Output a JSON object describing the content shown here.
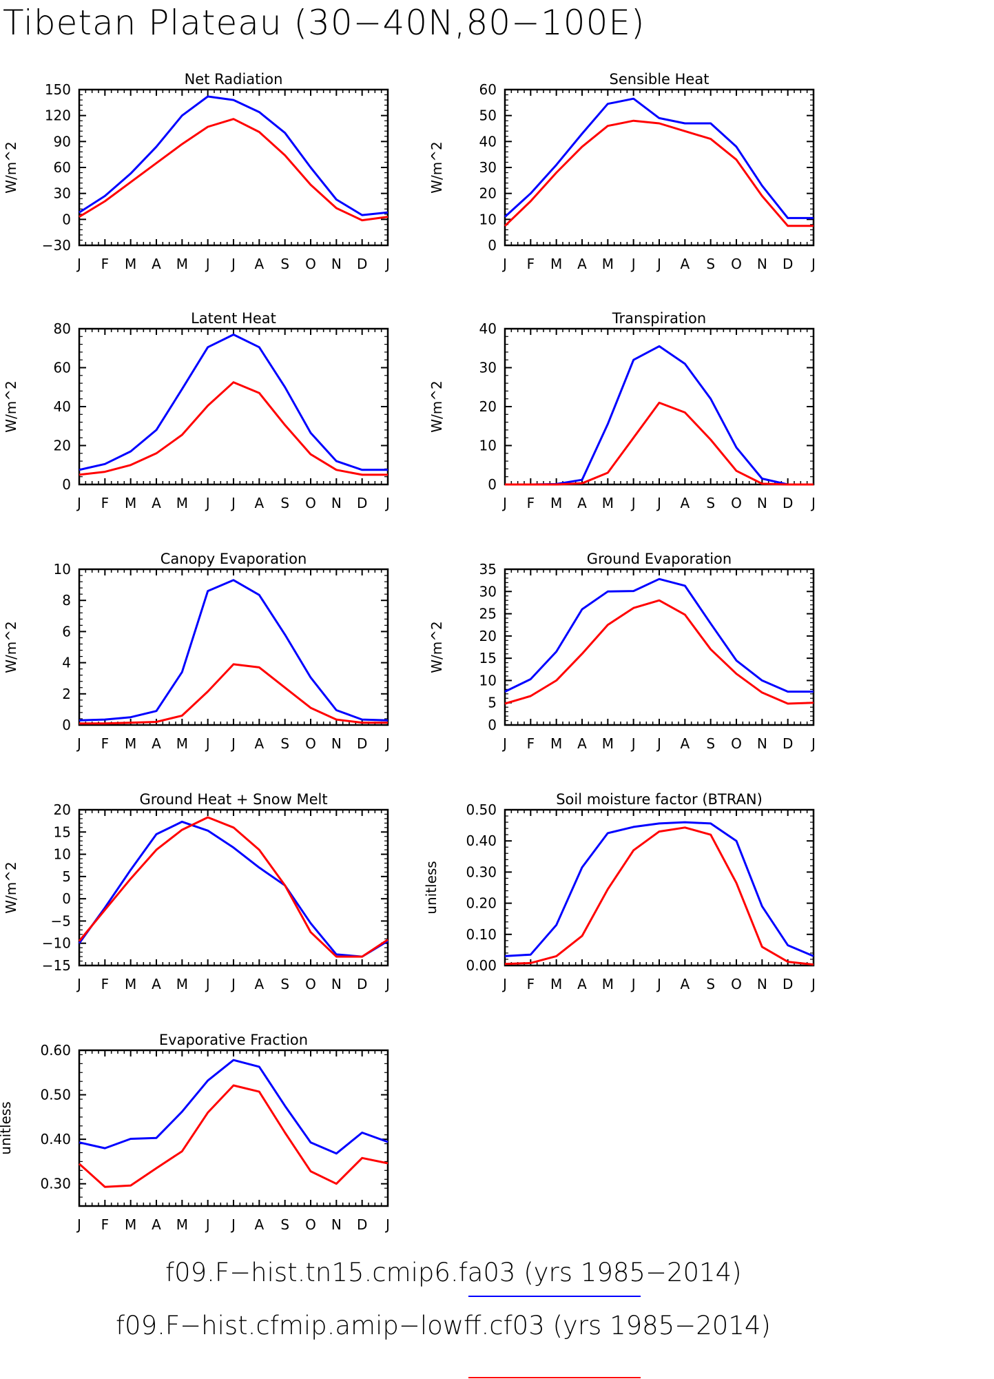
{
  "title": "Tibetan Plateau (30−40N,80−100E)",
  "colors": {
    "series1": "#0000ff",
    "series2": "#ff0000",
    "axis": "#000000"
  },
  "legend": {
    "items": [
      {
        "label": "f09.F−hist.tn15.cmip6.fa03 (yrs 1985−2014)",
        "color": "#0000ff"
      },
      {
        "label": "f09.F−hist.cfmip.amip−lowff.cf03 (yrs 1985−2014)",
        "color": "#ff0000"
      }
    ]
  },
  "chart_data": [
    {
      "type": "line",
      "title": "Net Radiation",
      "ylabel": "W/m^2",
      "categories": [
        "J",
        "F",
        "M",
        "A",
        "M",
        "J",
        "J",
        "A",
        "S",
        "O",
        "N",
        "D",
        "J"
      ],
      "ylim": [
        -30,
        150
      ],
      "yticks": [
        "−30",
        "0",
        "30",
        "60",
        "90",
        "120",
        "150"
      ],
      "ytick_values": [
        -30,
        0,
        30,
        60,
        90,
        120,
        150
      ],
      "series": [
        {
          "values": [
            8,
            27,
            53,
            84,
            120,
            142,
            138,
            124,
            100,
            60,
            23,
            5,
            8
          ]
        },
        {
          "values": [
            3,
            21,
            43,
            65,
            87,
            107,
            116,
            101,
            74,
            40,
            13,
            -1,
            3
          ]
        }
      ]
    },
    {
      "type": "line",
      "title": "Sensible Heat",
      "ylabel": "W/m^2",
      "categories": [
        "J",
        "F",
        "M",
        "A",
        "M",
        "J",
        "J",
        "A",
        "S",
        "O",
        "N",
        "D",
        "J"
      ],
      "ylim": [
        0,
        60
      ],
      "yticks": [
        "0",
        "10",
        "20",
        "30",
        "40",
        "50",
        "60"
      ],
      "ytick_values": [
        0,
        10,
        20,
        30,
        40,
        50,
        60
      ],
      "series": [
        {
          "values": [
            11,
            20,
            31,
            43,
            54.5,
            56.5,
            49,
            47,
            47,
            38,
            23,
            10.5,
            10.5
          ]
        },
        {
          "values": [
            7.5,
            17,
            28,
            38,
            46,
            48,
            47,
            44,
            41,
            33,
            19,
            7.5,
            7.5
          ]
        }
      ]
    },
    {
      "type": "line",
      "title": "Latent Heat",
      "ylabel": "W/m^2",
      "categories": [
        "J",
        "F",
        "M",
        "A",
        "M",
        "J",
        "J",
        "A",
        "S",
        "O",
        "N",
        "D",
        "J"
      ],
      "ylim": [
        0,
        80
      ],
      "yticks": [
        "0",
        "20",
        "40",
        "60",
        "80"
      ],
      "ytick_values": [
        0,
        20,
        40,
        60,
        80
      ],
      "series": [
        {
          "values": [
            7.5,
            10.5,
            17,
            28,
            49,
            70.5,
            77,
            70.5,
            50,
            26.5,
            12,
            7.5,
            7.5
          ]
        },
        {
          "values": [
            5,
            6.5,
            10,
            16,
            25.5,
            40.5,
            52.5,
            47,
            30.5,
            15.5,
            7.5,
            5,
            5
          ]
        }
      ]
    },
    {
      "type": "line",
      "title": "Transpiration",
      "ylabel": "W/m^2",
      "categories": [
        "J",
        "F",
        "M",
        "A",
        "M",
        "J",
        "J",
        "A",
        "S",
        "O",
        "N",
        "D",
        "J"
      ],
      "ylim": [
        0,
        40
      ],
      "yticks": [
        "0",
        "10",
        "20",
        "30",
        "40"
      ],
      "ytick_values": [
        0,
        10,
        20,
        30,
        40
      ],
      "series": [
        {
          "values": [
            0,
            0,
            0.1,
            1.2,
            15.5,
            32,
            35.5,
            31,
            22,
            9.5,
            1.5,
            0,
            0
          ]
        },
        {
          "values": [
            0,
            0,
            0,
            0.3,
            3,
            12,
            21,
            18.5,
            11.5,
            3.5,
            0.2,
            0,
            0
          ]
        }
      ]
    },
    {
      "type": "line",
      "title": "Canopy Evaporation",
      "ylabel": "W/m^2",
      "categories": [
        "J",
        "F",
        "M",
        "A",
        "M",
        "J",
        "J",
        "A",
        "S",
        "O",
        "N",
        "D",
        "J"
      ],
      "ylim": [
        0,
        10
      ],
      "yticks": [
        "0",
        "2",
        "4",
        "6",
        "8",
        "10"
      ],
      "ytick_values": [
        0,
        2,
        4,
        6,
        8,
        10
      ],
      "series": [
        {
          "values": [
            0.3,
            0.35,
            0.5,
            0.9,
            3.4,
            8.6,
            9.3,
            8.35,
            5.8,
            3.05,
            0.95,
            0.35,
            0.3
          ]
        },
        {
          "values": [
            0.1,
            0.1,
            0.15,
            0.2,
            0.6,
            2.15,
            3.9,
            3.7,
            2.4,
            1.1,
            0.35,
            0.15,
            0.15
          ]
        }
      ]
    },
    {
      "type": "line",
      "title": "Ground Evaporation",
      "ylabel": "W/m^2",
      "categories": [
        "J",
        "F",
        "M",
        "A",
        "M",
        "J",
        "J",
        "A",
        "S",
        "O",
        "N",
        "D",
        "J"
      ],
      "ylim": [
        0,
        35
      ],
      "yticks": [
        "0",
        "5",
        "10",
        "15",
        "20",
        "25",
        "30",
        "35"
      ],
      "ytick_values": [
        0,
        5,
        10,
        15,
        20,
        25,
        30,
        35
      ],
      "series": [
        {
          "values": [
            7.5,
            10.3,
            16.5,
            26,
            30,
            30.1,
            32.8,
            31.3,
            22.8,
            14.5,
            10,
            7.5,
            7.5
          ]
        },
        {
          "values": [
            4.8,
            6.5,
            10,
            16,
            22.5,
            26.3,
            28,
            24.8,
            17,
            11.5,
            7.3,
            4.8,
            5
          ]
        }
      ]
    },
    {
      "type": "line",
      "title": "Ground Heat + Snow Melt",
      "ylabel": "W/m^2",
      "categories": [
        "J",
        "F",
        "M",
        "A",
        "M",
        "J",
        "J",
        "A",
        "S",
        "O",
        "N",
        "D",
        "J"
      ],
      "ylim": [
        -15,
        20
      ],
      "yticks": [
        "−15",
        "−10",
        "−5",
        "0",
        "5",
        "10",
        "15",
        "20"
      ],
      "ytick_values": [
        -15,
        -10,
        -5,
        0,
        5,
        10,
        15,
        20
      ],
      "series": [
        {
          "values": [
            -10,
            -2,
            6.5,
            14.5,
            17.3,
            15.3,
            11.5,
            7,
            3,
            -5.5,
            -12.5,
            -13,
            -9.5
          ]
        },
        {
          "values": [
            -9.5,
            -2.5,
            4.5,
            11,
            15.5,
            18.3,
            16,
            11,
            3,
            -7.5,
            -13,
            -13,
            -9.2
          ]
        }
      ]
    },
    {
      "type": "line",
      "title": "Soil moisture factor (BTRAN)",
      "ylabel": "unitless",
      "categories": [
        "J",
        "F",
        "M",
        "A",
        "M",
        "J",
        "J",
        "A",
        "S",
        "O",
        "N",
        "D",
        "J"
      ],
      "ylim": [
        0,
        0.5
      ],
      "yticks": [
        "0.00",
        "0.10",
        "0.20",
        "0.30",
        "0.40",
        "0.50"
      ],
      "ytick_values": [
        0,
        0.1,
        0.2,
        0.3,
        0.4,
        0.5
      ],
      "series": [
        {
          "values": [
            0.03,
            0.035,
            0.13,
            0.315,
            0.425,
            0.445,
            0.456,
            0.46,
            0.456,
            0.4,
            0.19,
            0.065,
            0.03
          ]
        },
        {
          "values": [
            0.005,
            0.008,
            0.03,
            0.095,
            0.245,
            0.37,
            0.43,
            0.443,
            0.42,
            0.265,
            0.06,
            0.012,
            0.003
          ]
        }
      ]
    },
    {
      "type": "line",
      "title": "Evaporative Fraction",
      "ylabel": "unitless",
      "categories": [
        "J",
        "F",
        "M",
        "A",
        "M",
        "J",
        "J",
        "A",
        "S",
        "O",
        "N",
        "D",
        "J"
      ],
      "ylim": [
        0.25,
        0.6
      ],
      "yticks": [
        "0.30",
        "0.40",
        "0.50",
        "0.60"
      ],
      "ytick_values": [
        0.3,
        0.4,
        0.5,
        0.6
      ],
      "series": [
        {
          "values": [
            0.393,
            0.38,
            0.401,
            0.403,
            0.462,
            0.532,
            0.578,
            0.563,
            0.475,
            0.393,
            0.368,
            0.415,
            0.394
          ]
        },
        {
          "values": [
            0.345,
            0.293,
            0.296,
            0.335,
            0.373,
            0.46,
            0.521,
            0.507,
            0.415,
            0.328,
            0.3,
            0.358,
            0.346
          ]
        }
      ]
    }
  ]
}
